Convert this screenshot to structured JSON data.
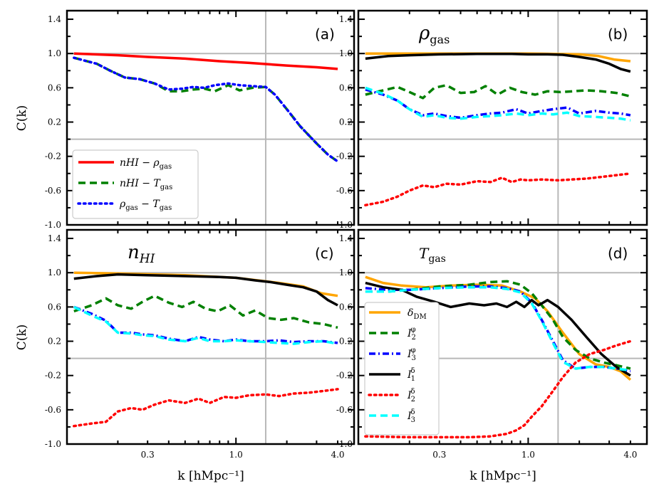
{
  "figure": {
    "xlabel": "k [hMpc⁻¹]",
    "ylabel": "C(k)"
  },
  "colors": {
    "red": "#ff0000",
    "green": "#008000",
    "blue": "#0000ff",
    "orange": "#ffa500",
    "black": "#000000",
    "cyan": "#00ffff",
    "grid": "#b8b8b8"
  },
  "chart_data": [
    {
      "type": "line",
      "panel": "(a)",
      "title": "",
      "xscale": "log",
      "xlim": [
        0.1,
        5.0
      ],
      "ylim": [
        -1.0,
        1.5
      ],
      "xticks": [
        "0.3",
        "1.0",
        "4.0"
      ],
      "yticks": [
        "-1.0",
        "-0.6",
        "-0.2",
        "0.2",
        "0.6",
        "1.0",
        "1.4"
      ],
      "reference_lines": {
        "y": [
          1.0,
          0.0
        ],
        "x": [
          1.5
        ]
      },
      "legend": {
        "placement": "lower-left"
      },
      "series": [
        {
          "name": "n_HI − ρ_gas",
          "label_main": "nHI − ρ",
          "label_sub": "gas",
          "color": "red",
          "style": "solid",
          "x": [
            0.11,
            0.2,
            0.3,
            0.5,
            0.8,
            1.2,
            2.0,
            3.0,
            4.0
          ],
          "y": [
            1.0,
            0.98,
            0.96,
            0.94,
            0.91,
            0.89,
            0.86,
            0.84,
            0.82
          ]
        },
        {
          "name": "n_HI − T_gas",
          "label_main": "nHI − T",
          "label_sub": "gas",
          "color": "green",
          "style": "dashed",
          "x": [
            0.11,
            0.15,
            0.18,
            0.22,
            0.27,
            0.33,
            0.4,
            0.48,
            0.56,
            0.65,
            0.75,
            0.9,
            1.05,
            1.25,
            1.5,
            1.7,
            2.0,
            2.4,
            3.0,
            3.5,
            4.0
          ],
          "y": [
            0.95,
            0.88,
            0.8,
            0.72,
            0.7,
            0.65,
            0.56,
            0.56,
            0.58,
            0.59,
            0.56,
            0.63,
            0.57,
            0.6,
            0.61,
            0.52,
            0.35,
            0.15,
            -0.05,
            -0.18,
            -0.26
          ]
        },
        {
          "name": "ρ_gas − T_gas",
          "label_main": "ρ",
          "label_sub": "gas",
          "label_main2": " − T",
          "label_sub2": "gas",
          "color": "blue",
          "style": "dotted",
          "x": [
            0.11,
            0.15,
            0.18,
            0.22,
            0.27,
            0.33,
            0.4,
            0.48,
            0.56,
            0.65,
            0.75,
            0.9,
            1.05,
            1.25,
            1.5,
            1.7,
            2.0,
            2.4,
            3.0,
            3.5,
            4.0
          ],
          "y": [
            0.95,
            0.88,
            0.8,
            0.72,
            0.7,
            0.65,
            0.58,
            0.59,
            0.61,
            0.6,
            0.63,
            0.65,
            0.63,
            0.62,
            0.61,
            0.52,
            0.35,
            0.15,
            -0.05,
            -0.18,
            -0.26
          ]
        }
      ]
    },
    {
      "type": "line",
      "panel": "(b)",
      "title": "ρgas",
      "xscale": "log",
      "xlim": [
        0.1,
        5.0
      ],
      "ylim": [
        -1.0,
        1.5
      ],
      "xticks": [
        "0.3",
        "1.0",
        "4.0"
      ],
      "yticks": [
        "-1.0",
        "-0.6",
        "-0.2",
        "0.2",
        "0.6",
        "1.0",
        "1.4"
      ],
      "reference_lines": {
        "y": [
          1.0,
          0.0
        ],
        "x": [
          1.5
        ]
      },
      "series": [
        {
          "name": "δ_DM",
          "color": "orange",
          "style": "solid",
          "x": [
            0.11,
            0.2,
            0.5,
            1.0,
            2.0,
            2.6,
            3.2,
            4.0
          ],
          "y": [
            1.0,
            1.0,
            1.0,
            1.0,
            0.99,
            0.97,
            0.93,
            0.91
          ]
        },
        {
          "name": "I_2^φ",
          "color": "green",
          "style": "dashed",
          "x": [
            0.11,
            0.14,
            0.17,
            0.2,
            0.24,
            0.28,
            0.33,
            0.4,
            0.48,
            0.56,
            0.66,
            0.78,
            0.92,
            1.1,
            1.3,
            1.55,
            1.85,
            2.2,
            2.7,
            3.3,
            4.0
          ],
          "y": [
            0.52,
            0.57,
            0.61,
            0.55,
            0.48,
            0.6,
            0.63,
            0.54,
            0.55,
            0.62,
            0.52,
            0.6,
            0.55,
            0.52,
            0.56,
            0.55,
            0.56,
            0.57,
            0.56,
            0.54,
            0.5
          ]
        },
        {
          "name": "I_3^φ",
          "color": "blue",
          "style": "dashdot",
          "x": [
            0.11,
            0.14,
            0.17,
            0.2,
            0.24,
            0.28,
            0.33,
            0.4,
            0.5,
            0.6,
            0.7,
            0.85,
            1.0,
            1.2,
            1.4,
            1.7,
            2.0,
            2.5,
            3.0,
            3.5,
            4.0
          ],
          "y": [
            0.58,
            0.52,
            0.45,
            0.35,
            0.28,
            0.3,
            0.27,
            0.25,
            0.28,
            0.3,
            0.31,
            0.35,
            0.3,
            0.33,
            0.35,
            0.37,
            0.3,
            0.33,
            0.31,
            0.3,
            0.28
          ]
        },
        {
          "name": "I_1^δ",
          "color": "black",
          "style": "solid",
          "x": [
            0.11,
            0.15,
            0.2,
            0.3,
            0.5,
            0.8,
            1.0,
            1.3,
            1.6,
            2.0,
            2.5,
            3.0,
            3.5,
            4.0
          ],
          "y": [
            0.94,
            0.97,
            0.98,
            0.99,
            0.995,
            0.995,
            0.99,
            0.99,
            0.985,
            0.96,
            0.93,
            0.88,
            0.82,
            0.79
          ]
        },
        {
          "name": "I_2^δ",
          "color": "red",
          "style": "dotted",
          "x": [
            0.11,
            0.14,
            0.17,
            0.2,
            0.24,
            0.28,
            0.33,
            0.4,
            0.5,
            0.6,
            0.7,
            0.8,
            0.9,
            1.0,
            1.2,
            1.5,
            1.8,
            2.2,
            2.7,
            3.3,
            4.0
          ],
          "y": [
            -0.77,
            -0.73,
            -0.67,
            -0.6,
            -0.54,
            -0.56,
            -0.52,
            -0.53,
            -0.49,
            -0.5,
            -0.45,
            -0.5,
            -0.47,
            -0.48,
            -0.47,
            -0.48,
            -0.47,
            -0.46,
            -0.44,
            -0.42,
            -0.4
          ]
        },
        {
          "name": "I_3^δ",
          "color": "cyan",
          "style": "dashed",
          "x": [
            0.11,
            0.14,
            0.17,
            0.2,
            0.24,
            0.28,
            0.33,
            0.4,
            0.5,
            0.6,
            0.7,
            0.85,
            1.0,
            1.2,
            1.4,
            1.7,
            2.0,
            2.5,
            3.0,
            3.5,
            4.0
          ],
          "y": [
            0.6,
            0.53,
            0.45,
            0.35,
            0.26,
            0.28,
            0.25,
            0.24,
            0.26,
            0.27,
            0.28,
            0.3,
            0.28,
            0.3,
            0.29,
            0.31,
            0.27,
            0.26,
            0.25,
            0.24,
            0.22
          ]
        }
      ]
    },
    {
      "type": "line",
      "panel": "(c)",
      "title": "nHI",
      "xscale": "log",
      "xlim": [
        0.1,
        5.0
      ],
      "ylim": [
        -1.0,
        1.5
      ],
      "xticks": [
        "0.3",
        "1.0",
        "4.0"
      ],
      "yticks": [
        "-1.0",
        "-0.6",
        "-0.2",
        "0.2",
        "0.6",
        "1.0",
        "1.4"
      ],
      "reference_lines": {
        "y": [
          1.0,
          0.0
        ],
        "x": [
          1.5
        ]
      },
      "series": [
        {
          "name": "δ_DM",
          "color": "orange",
          "style": "solid",
          "x": [
            0.11,
            0.2,
            0.5,
            1.0,
            1.8,
            2.5,
            3.2,
            4.0
          ],
          "y": [
            1.0,
            0.99,
            0.97,
            0.94,
            0.88,
            0.84,
            0.76,
            0.73
          ]
        },
        {
          "name": "I_2^φ",
          "color": "green",
          "style": "dashed",
          "x": [
            0.11,
            0.14,
            0.17,
            0.2,
            0.24,
            0.28,
            0.33,
            0.4,
            0.48,
            0.56,
            0.66,
            0.78,
            0.92,
            1.1,
            1.3,
            1.55,
            1.85,
            2.2,
            2.7,
            3.3,
            4.0
          ],
          "y": [
            0.55,
            0.62,
            0.7,
            0.62,
            0.58,
            0.66,
            0.73,
            0.65,
            0.6,
            0.66,
            0.58,
            0.55,
            0.62,
            0.5,
            0.56,
            0.47,
            0.45,
            0.47,
            0.42,
            0.4,
            0.36
          ]
        },
        {
          "name": "I_3^φ",
          "color": "blue",
          "style": "dashdot",
          "x": [
            0.11,
            0.14,
            0.17,
            0.2,
            0.24,
            0.28,
            0.33,
            0.4,
            0.5,
            0.6,
            0.7,
            0.85,
            1.0,
            1.2,
            1.5,
            1.8,
            2.2,
            2.7,
            3.3,
            4.0
          ],
          "y": [
            0.6,
            0.52,
            0.44,
            0.3,
            0.3,
            0.28,
            0.27,
            0.23,
            0.2,
            0.25,
            0.22,
            0.2,
            0.22,
            0.2,
            0.2,
            0.21,
            0.19,
            0.2,
            0.2,
            0.18
          ]
        },
        {
          "name": "I_1^δ",
          "color": "black",
          "style": "solid",
          "x": [
            0.11,
            0.15,
            0.2,
            0.3,
            0.5,
            0.8,
            1.0,
            1.3,
            1.6,
            2.0,
            2.5,
            3.0,
            3.5,
            4.0
          ],
          "y": [
            0.93,
            0.96,
            0.98,
            0.97,
            0.96,
            0.95,
            0.94,
            0.91,
            0.89,
            0.86,
            0.83,
            0.78,
            0.68,
            0.62
          ]
        },
        {
          "name": "I_2^δ",
          "color": "red",
          "style": "dotted",
          "x": [
            0.11,
            0.14,
            0.17,
            0.2,
            0.24,
            0.28,
            0.33,
            0.4,
            0.5,
            0.6,
            0.7,
            0.85,
            1.0,
            1.2,
            1.5,
            1.8,
            2.2,
            2.7,
            3.3,
            4.0
          ],
          "y": [
            -0.79,
            -0.76,
            -0.74,
            -0.62,
            -0.58,
            -0.6,
            -0.54,
            -0.49,
            -0.52,
            -0.47,
            -0.52,
            -0.45,
            -0.46,
            -0.43,
            -0.42,
            -0.44,
            -0.41,
            -0.4,
            -0.38,
            -0.36
          ]
        },
        {
          "name": "I_3^δ",
          "color": "cyan",
          "style": "dashed",
          "x": [
            0.11,
            0.14,
            0.17,
            0.2,
            0.24,
            0.28,
            0.33,
            0.4,
            0.5,
            0.6,
            0.7,
            0.85,
            1.0,
            1.2,
            1.5,
            1.8,
            2.2,
            2.7,
            3.3,
            4.0
          ],
          "y": [
            0.6,
            0.5,
            0.43,
            0.3,
            0.29,
            0.27,
            0.26,
            0.22,
            0.2,
            0.24,
            0.2,
            0.2,
            0.21,
            0.2,
            0.19,
            0.18,
            0.17,
            0.19,
            0.2,
            0.17
          ]
        }
      ]
    },
    {
      "type": "line",
      "panel": "(d)",
      "title": "Tgas",
      "xscale": "log",
      "xlim": [
        0.1,
        5.0
      ],
      "ylim": [
        -1.0,
        1.5
      ],
      "xticks": [
        "0.3",
        "1.0",
        "4.0"
      ],
      "yticks": [
        "-1.0",
        "-0.6",
        "-0.2",
        "0.2",
        "0.6",
        "1.0",
        "1.4"
      ],
      "reference_lines": {
        "y": [
          1.0,
          0.0
        ],
        "x": [
          1.5
        ]
      },
      "legend": {
        "placement": "lower-left"
      },
      "series": [
        {
          "name": "δ_DM",
          "label_main": "δ",
          "label_sub": "DM",
          "label_sup": "",
          "color": "orange",
          "style": "solid",
          "x": [
            0.11,
            0.14,
            0.18,
            0.25,
            0.35,
            0.5,
            0.7,
            0.9,
            1.1,
            1.3,
            1.6,
            2.0,
            2.5,
            3.0,
            3.5,
            4.0
          ],
          "y": [
            0.95,
            0.88,
            0.85,
            0.83,
            0.85,
            0.86,
            0.85,
            0.78,
            0.7,
            0.55,
            0.3,
            0.05,
            -0.07,
            -0.1,
            -0.15,
            -0.25
          ]
        },
        {
          "name": "I_2^φ",
          "label_main": "I",
          "label_sub": "2",
          "label_sup": "φ",
          "color": "green",
          "style": "dashed",
          "x": [
            0.11,
            0.15,
            0.2,
            0.3,
            0.45,
            0.6,
            0.75,
            0.9,
            1.05,
            1.2,
            1.4,
            1.6,
            1.9,
            2.3,
            2.8,
            3.3,
            4.0
          ],
          "y": [
            0.78,
            0.78,
            0.8,
            0.84,
            0.86,
            0.89,
            0.9,
            0.86,
            0.76,
            0.62,
            0.45,
            0.25,
            0.1,
            0.0,
            -0.05,
            -0.08,
            -0.12
          ]
        },
        {
          "name": "I_3^φ",
          "label_main": "I",
          "label_sub": "3",
          "label_sup": "φ",
          "color": "blue",
          "style": "dashdot",
          "x": [
            0.11,
            0.15,
            0.2,
            0.3,
            0.45,
            0.6,
            0.75,
            0.9,
            1.05,
            1.2,
            1.4,
            1.6,
            1.9,
            2.3,
            2.8,
            3.3,
            4.0
          ],
          "y": [
            0.82,
            0.8,
            0.8,
            0.82,
            0.84,
            0.84,
            0.82,
            0.78,
            0.65,
            0.45,
            0.2,
            -0.02,
            -0.12,
            -0.1,
            -0.1,
            -0.12,
            -0.15
          ]
        },
        {
          "name": "I_1^δ",
          "label_main": "I",
          "label_sub": "1",
          "label_sup": "δ",
          "color": "black",
          "style": "solid",
          "x": [
            0.11,
            0.14,
            0.18,
            0.22,
            0.28,
            0.35,
            0.45,
            0.55,
            0.65,
            0.75,
            0.85,
            0.95,
            1.05,
            1.15,
            1.3,
            1.5,
            1.8,
            2.2,
            2.7,
            3.3,
            4.0
          ],
          "y": [
            0.88,
            0.83,
            0.8,
            0.72,
            0.66,
            0.6,
            0.64,
            0.62,
            0.64,
            0.6,
            0.66,
            0.6,
            0.68,
            0.62,
            0.68,
            0.6,
            0.45,
            0.25,
            0.05,
            -0.1,
            -0.2
          ]
        },
        {
          "name": "I_2^δ",
          "label_main": "I",
          "label_sub": "2",
          "label_sup": "δ",
          "color": "red",
          "style": "dotted",
          "x": [
            0.11,
            0.2,
            0.3,
            0.45,
            0.6,
            0.75,
            0.85,
            0.95,
            1.05,
            1.2,
            1.4,
            1.6,
            1.9,
            2.3,
            2.8,
            3.3,
            4.0
          ],
          "y": [
            -0.91,
            -0.92,
            -0.92,
            -0.92,
            -0.91,
            -0.88,
            -0.84,
            -0.78,
            -0.68,
            -0.56,
            -0.38,
            -0.22,
            -0.05,
            0.05,
            0.1,
            0.15,
            0.2
          ]
        },
        {
          "name": "I_3^δ",
          "label_main": "I",
          "label_sub": "3",
          "label_sup": "δ",
          "color": "cyan",
          "style": "dashed",
          "x": [
            0.11,
            0.15,
            0.2,
            0.3,
            0.45,
            0.6,
            0.75,
            0.9,
            1.05,
            1.2,
            1.4,
            1.6,
            1.9,
            2.3,
            2.8,
            3.3,
            4.0
          ],
          "y": [
            0.78,
            0.78,
            0.8,
            0.82,
            0.83,
            0.83,
            0.81,
            0.77,
            0.64,
            0.44,
            0.18,
            -0.04,
            -0.12,
            -0.1,
            -0.1,
            -0.12,
            -0.14
          ]
        }
      ]
    }
  ]
}
